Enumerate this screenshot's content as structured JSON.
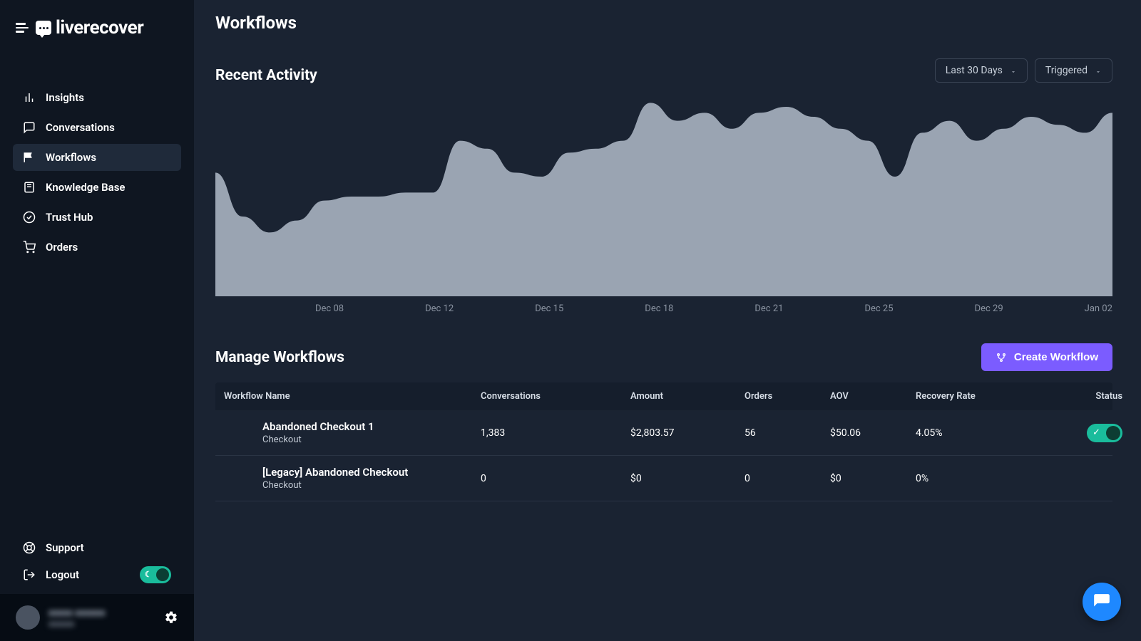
{
  "brand": "liverecover",
  "sidebar": {
    "items": [
      {
        "label": "Insights",
        "icon": "bar-chart"
      },
      {
        "label": "Conversations",
        "icon": "message-square"
      },
      {
        "label": "Workflows",
        "icon": "flag",
        "active": true
      },
      {
        "label": "Knowledge Base",
        "icon": "book"
      },
      {
        "label": "Trust Hub",
        "icon": "check-circle"
      },
      {
        "label": "Orders",
        "icon": "shopping-cart"
      }
    ],
    "bottom": {
      "support": "Support",
      "logout": "Logout"
    }
  },
  "page": {
    "title": "Workflows",
    "recent_activity_title": "Recent Activity",
    "filters": {
      "range": "Last 30 Days",
      "metric": "Triggered"
    }
  },
  "chart": {
    "type": "area",
    "fill_color": "#9aa4b2",
    "background_color": "#1a2332",
    "ylim": [
      0,
      100
    ],
    "values": [
      62,
      40,
      32,
      38,
      48,
      50,
      50,
      52,
      52,
      78,
      74,
      62,
      60,
      72,
      74,
      78,
      97,
      88,
      92,
      84,
      92,
      95,
      90,
      84,
      78,
      60,
      82,
      88,
      78,
      84,
      90,
      86,
      82,
      92
    ],
    "x_labels": [
      "Dec 08",
      "Dec 12",
      "Dec 15",
      "Dec 18",
      "Dec 21",
      "Dec 25",
      "Dec 29",
      "Jan 02"
    ],
    "label_color": "#8a93a1",
    "label_fontsize": 13
  },
  "manage": {
    "title": "Manage Workflows",
    "create_button": "Create Workflow",
    "create_button_bg": "#7b5cff",
    "columns": [
      "Workflow Name",
      "Conversations",
      "Amount",
      "Orders",
      "AOV",
      "Recovery Rate",
      "Status"
    ],
    "rows": [
      {
        "name": "Abandoned Checkout 1",
        "subtitle": "Checkout",
        "conversations": "1,383",
        "amount": "$2,803.57",
        "orders": "56",
        "aov": "$50.06",
        "recovery_rate": "4.05%",
        "status_on": true
      },
      {
        "name": "[Legacy] Abandoned Checkout",
        "subtitle": "Checkout",
        "conversations": "0",
        "amount": "$0",
        "orders": "0",
        "aov": "$0",
        "recovery_rate": "0%",
        "status_on": false
      }
    ]
  },
  "colors": {
    "sidebar_bg": "#0f1621",
    "main_bg": "#1a2332",
    "accent_green": "#1abc9c",
    "accent_purple": "#7b5cff",
    "accent_blue": "#1e88ff"
  }
}
